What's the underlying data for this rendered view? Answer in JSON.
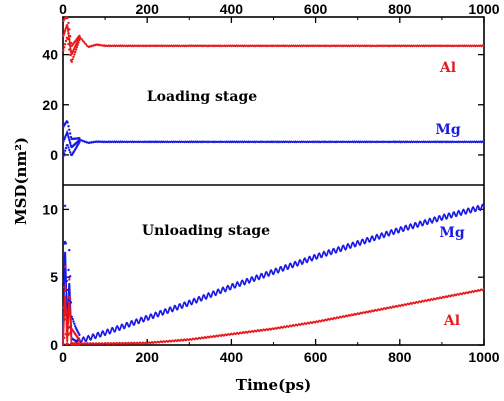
{
  "chart_data": {
    "type": "line",
    "shared_x": {
      "label": "Time(ps)",
      "lim": [
        0,
        1000
      ],
      "ticks": [
        "0",
        "200",
        "400",
        "600",
        "800",
        "1000"
      ]
    },
    "ylabel": "MSD(nm²)",
    "colors": {
      "Al": "#e8191c",
      "Mg": "#1a1ae6"
    },
    "panels": [
      {
        "stage": "Loading stage",
        "ylim": [
          -12,
          55
        ],
        "yticks": [
          "0",
          "20",
          "40"
        ],
        "series": [
          {
            "name": "Al",
            "x": [
              0,
              10,
              20,
              40,
              60,
              80,
              100,
              200,
              400,
              600,
              800,
              1000
            ],
            "y": [
              47,
              52,
              40,
              47,
              43,
              44,
              43.5,
              43.5,
              43.5,
              43.5,
              43.5,
              43.5
            ]
          },
          {
            "name": "Mg",
            "x": [
              0,
              10,
              20,
              40,
              60,
              80,
              100,
              200,
              400,
              600,
              800,
              1000
            ],
            "y": [
              5,
              9,
              3,
              6,
              4.8,
              5.3,
              5.2,
              5.2,
              5.2,
              5.2,
              5.2,
              5.2
            ]
          }
        ]
      },
      {
        "stage": "Unloading stage",
        "ylim": [
          0,
          11.8
        ],
        "yticks": [
          "0",
          "5",
          "10"
        ],
        "series": [
          {
            "name": "Mg",
            "x": [
              0,
              5,
              10,
              15,
              20,
              30,
              50,
              100,
              200,
              300,
              400,
              500,
              600,
              700,
              800,
              900,
              1000
            ],
            "y": [
              0.3,
              7.6,
              1.0,
              5.0,
              0.5,
              0.3,
              0.4,
              0.9,
              2.0,
              3.1,
              4.3,
              5.4,
              6.5,
              7.5,
              8.5,
              9.4,
              10.2
            ]
          },
          {
            "name": "Al",
            "x": [
              0,
              5,
              10,
              15,
              20,
              50,
              100,
              200,
              300,
              400,
              500,
              600,
              700,
              800,
              900,
              1000
            ],
            "y": [
              0.0,
              4.0,
              0.2,
              3.5,
              0.1,
              0.1,
              0.1,
              0.15,
              0.4,
              0.8,
              1.2,
              1.7,
              2.3,
              2.9,
              3.5,
              4.1
            ]
          }
        ]
      }
    ]
  }
}
